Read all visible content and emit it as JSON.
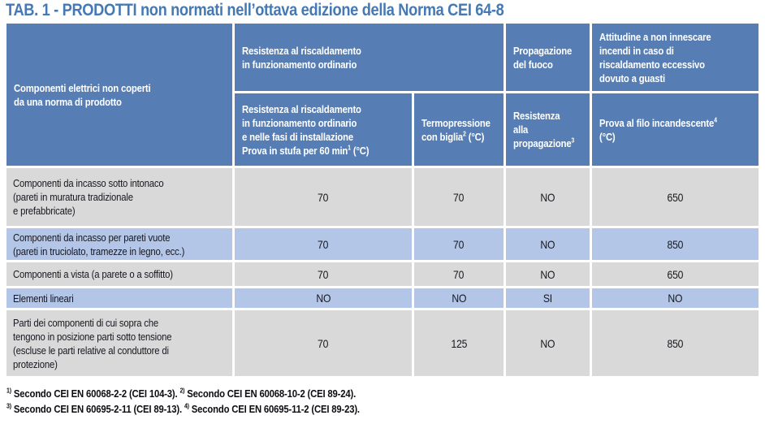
{
  "title": "TAB. 1 - PRODOTTI non normati nell’ottava edizione della Norma CEI 64-8",
  "colors": {
    "header_blue": "#567EB4",
    "row_gray": "#D9D9D9",
    "row_light_blue": "#B4C6E7",
    "title_blue": "#4579B4",
    "header_text": "#FFFFFF",
    "body_text": "#17171F"
  },
  "table": {
    "header": {
      "components": "Componenti elettrici non coperti\nda una norma di prodotto",
      "heat_group": "Resistenza al riscaldamento\nin funzionamento ordinario",
      "fire_group": "Propagazione\ndel fuoco",
      "ignition_group": "Attitudine a non innescare\nincendi in caso di\nriscaldamento eccessivo\ndovuto a guasti",
      "oven_test": {
        "pre": "Resistenza al riscaldamento\nin funzionamento ordinario\ne nelle fasi di installazione\nProva in stufa per 60 min",
        "sup": "1",
        "post": " (°C)"
      },
      "ball_pressure": {
        "pre": "Termopressione\ncon biglia",
        "sup": "2",
        "post": " (°C)"
      },
      "propagation_resistance": {
        "pre": "Resistenza\nalla\npropagazione",
        "sup": "3",
        "post": ""
      },
      "glow_wire": {
        "pre": "Prova al filo incandescente",
        "sup": "4",
        "post": "\n(°C)"
      }
    },
    "rows": [
      {
        "label": "Componenti da incasso sotto intonaco\n(pareti in muratura tradizionale\ne prefabbricate)",
        "oven": "70",
        "ball": "70",
        "propagation": "NO",
        "glow_wire": "650"
      },
      {
        "label": "Componenti da incasso per pareti vuote\n(pareti in truciolato, tramezze in legno, ecc.)",
        "oven": "70",
        "ball": "70",
        "propagation": "NO",
        "glow_wire": "850"
      },
      {
        "label": "Componenti a vista (a parete o a soffitto)",
        "oven": "70",
        "ball": "70",
        "propagation": "NO",
        "glow_wire": "650"
      },
      {
        "label": "Elementi lineari",
        "oven": "NO",
        "ball": "NO",
        "propagation": "SI",
        "glow_wire": "NO"
      },
      {
        "label": "Parti dei componenti di cui sopra che\ntengono in posizione parti sotto tensione\n(escluse le parti relative al conduttore di\nprotezione)",
        "oven": "70",
        "ball": "125",
        "propagation": "NO",
        "glow_wire": "850"
      }
    ]
  },
  "footnotes": {
    "line1": {
      "m1": "1)",
      "t1": " Secondo CEI EN 60068-2-2 (CEI 104-3). ",
      "m2": "2)",
      "t2": " Secondo CEI EN 60068-10-2 (CEI 89-24)."
    },
    "line2": {
      "m3": "3)",
      "t3": " Secondo CEI EN 60695-2-11 (CEI 89-13). ",
      "m4": "4)",
      "t4": " Secondo CEI EN 60695-11-2 (CEI 89-23)."
    }
  }
}
